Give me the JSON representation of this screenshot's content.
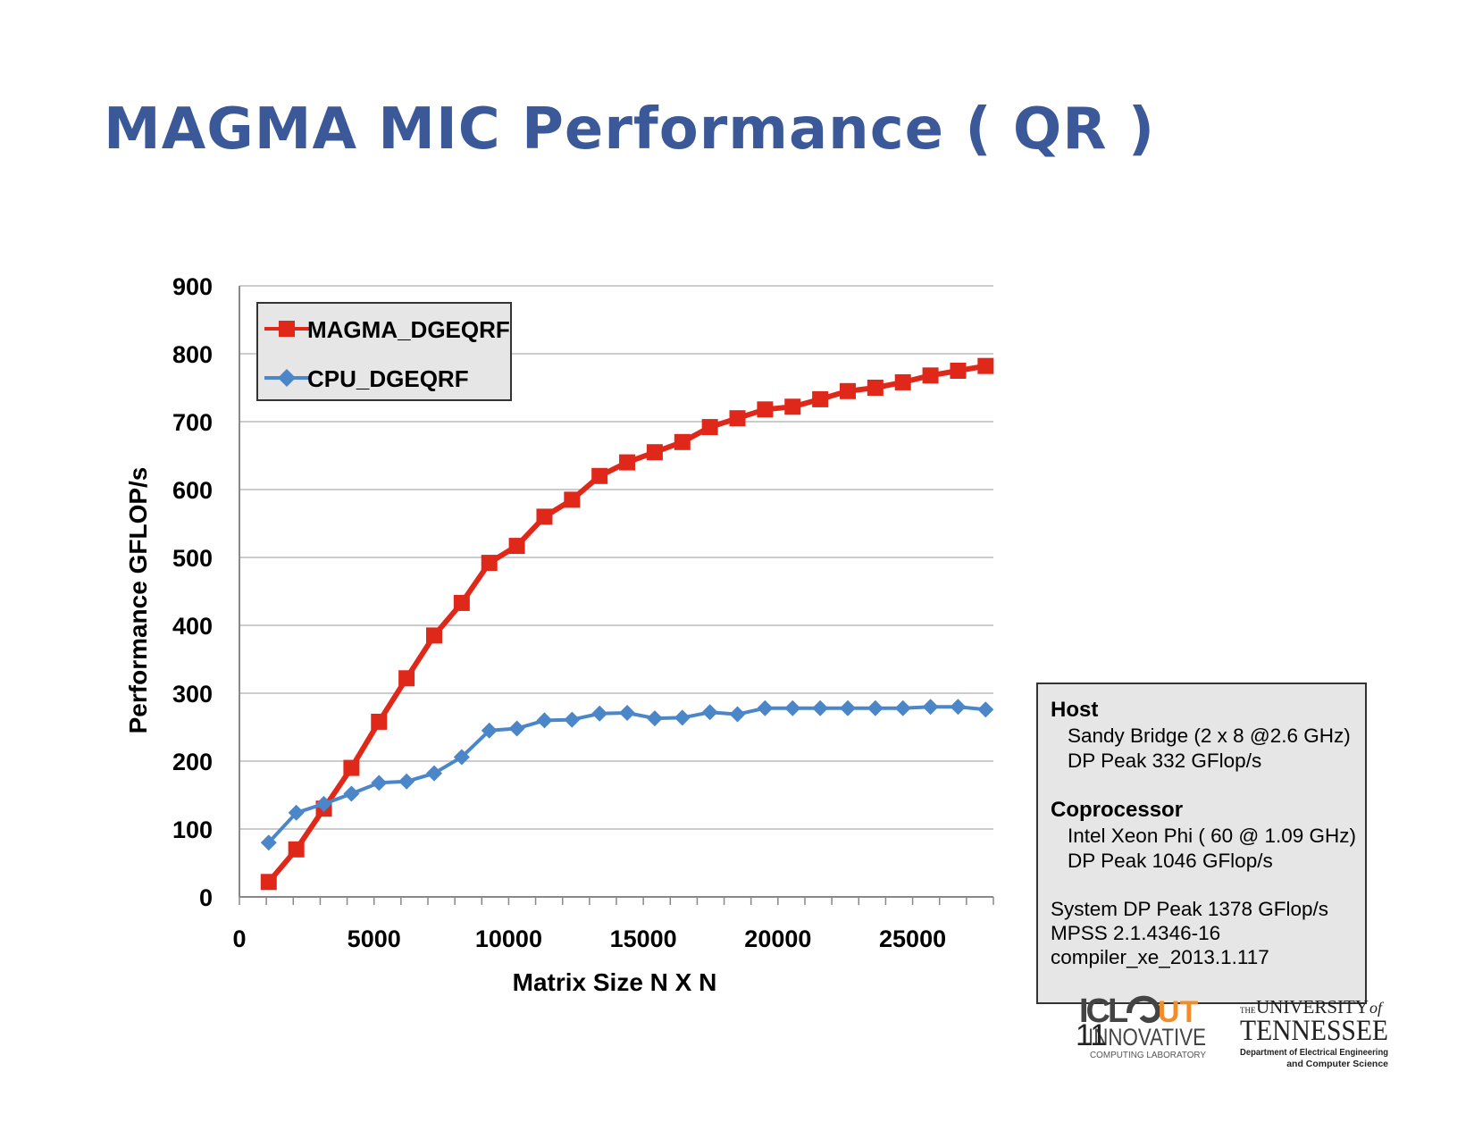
{
  "title": "MAGMA MIC Performance ( QR )",
  "page_number": "11",
  "colors": {
    "title": "#3B5998",
    "magma": "#E0281A",
    "cpu": "#4A86C8",
    "grid": "#BBBBBB",
    "infobox_bg": "#E6E6E6"
  },
  "chart_data": {
    "type": "line",
    "xlabel": "Matrix Size N X N",
    "ylabel": "Performance GFLOP/s",
    "xlim": [
      0,
      28000
    ],
    "ylim": [
      0,
      900
    ],
    "x_ticks": [
      "0",
      "5000",
      "10000",
      "15000",
      "20000",
      "25000"
    ],
    "y_ticks": [
      "0",
      "100",
      "200",
      "300",
      "400",
      "500",
      "600",
      "700",
      "800",
      "900"
    ],
    "grid": "horizontal",
    "legend_position": "top-left",
    "x": [
      1088,
      2112,
      3136,
      4160,
      5184,
      6208,
      7232,
      8256,
      9280,
      10304,
      11328,
      12352,
      13376,
      14400,
      15424,
      16448,
      17472,
      18496,
      19520,
      20544,
      21568,
      22592,
      23616,
      24640,
      25664,
      26688,
      27712
    ],
    "series": [
      {
        "name": "MAGMA_DGEQRF",
        "marker": "square",
        "color": "#E0281A",
        "values": [
          22,
          70,
          130,
          190,
          258,
          322,
          385,
          433,
          492,
          517,
          560,
          585,
          620,
          640,
          655,
          670,
          692,
          705,
          718,
          722,
          733,
          745,
          750,
          758,
          768,
          775,
          782
        ]
      },
      {
        "name": "CPU_DGEQRF",
        "marker": "diamond",
        "color": "#4A86C8",
        "values": [
          80,
          124,
          137,
          152,
          168,
          170,
          182,
          206,
          245,
          248,
          260,
          261,
          270,
          271,
          263,
          264,
          272,
          269,
          278,
          278,
          278,
          278,
          278,
          278,
          280,
          280,
          276
        ]
      }
    ]
  },
  "info_box": {
    "host_heading": "Host",
    "host_cpu": "Sandy Bridge (2 x 8 @2.6 GHz)",
    "host_peak": "DP Peak  332 GFlop/s",
    "coproc_heading": "Coprocessor",
    "coproc_name": "Intel Xeon Phi ( 60 @ 1.09 GHz)",
    "coproc_peak": "DP Peak 1046 GFlop/s",
    "system_peak": "System DP Peak 1378 GFlop/s",
    "mpss": "MPSS 2.1.4346-16",
    "compiler": "compiler_xe_2013.1.117"
  },
  "logos": {
    "icl_top": "ICL",
    "icl_accent": "UT",
    "icl_main": "INNOVATIVE",
    "icl_sub": "COMPUTING LABORATORY",
    "ut_the": "THE",
    "ut_university": "UNIVERSITY",
    "ut_of": "of",
    "ut_name": "TENNESSEE",
    "ut_dept1": "Department of Electrical Engineering",
    "ut_dept2": "and Computer Science"
  }
}
